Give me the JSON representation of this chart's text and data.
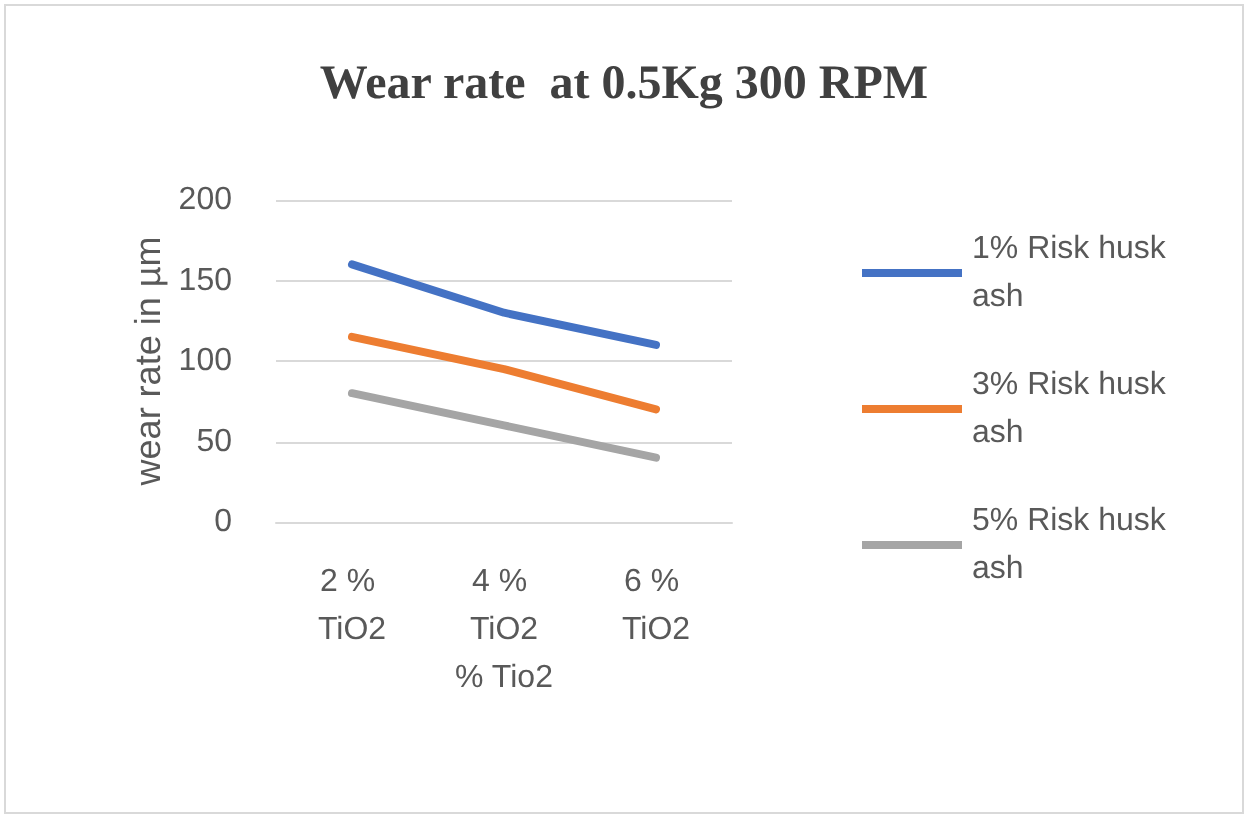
{
  "chart_data": {
    "type": "line",
    "title": "Wear rate  at 0.5Kg 300 RPM",
    "xlabel": "% Tio2",
    "ylabel": "wear rate in µm",
    "categories": [
      "2 % TiO2",
      "4 % TiO2",
      "6 % TiO2"
    ],
    "series": [
      {
        "name": "1% Risk husk ash",
        "color": "#4472c4",
        "values": [
          160,
          130,
          110
        ]
      },
      {
        "name": "3% Risk husk ash",
        "color": "#ed7d31",
        "values": [
          115,
          95,
          70
        ]
      },
      {
        "name": "5% Risk husk ash",
        "color": "#a5a5a5",
        "values": [
          80,
          60,
          40
        ]
      }
    ],
    "ylim": [
      0,
      200
    ],
    "yticks": [
      0,
      50,
      100,
      150,
      200
    ],
    "grid": "y",
    "legend": "right",
    "marker": "none",
    "line_style": "solid"
  }
}
